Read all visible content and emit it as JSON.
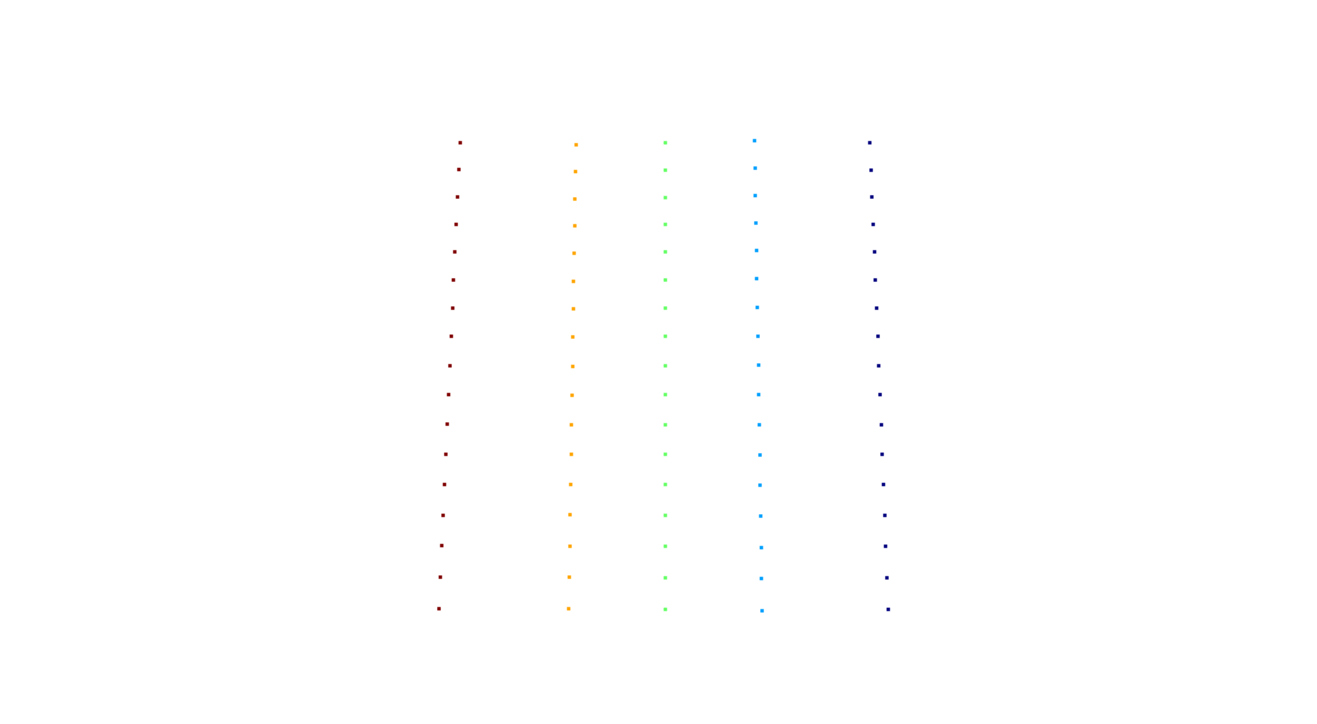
{
  "chart_data": {
    "type": "scatter",
    "axes_visible": false,
    "grid": false,
    "legend": "none",
    "series": [
      {
        "color": "#800000",
        "x": [
          671,
          669,
          667,
          665,
          663,
          661,
          660,
          658,
          656,
          654,
          652,
          650,
          648,
          646,
          644,
          642,
          640
        ],
        "y": [
          208,
          247,
          287,
          327,
          367,
          408,
          449,
          490,
          533,
          575,
          618,
          662,
          706,
          751,
          795,
          841,
          887
        ]
      },
      {
        "color": "#FFA500",
        "x": [
          840,
          839,
          838,
          838,
          837,
          836,
          836,
          835,
          835,
          834,
          833,
          833,
          832,
          831,
          831,
          830,
          829
        ],
        "y": [
          211,
          250,
          290,
          329,
          369,
          410,
          450,
          491,
          534,
          576,
          619,
          662,
          706,
          750,
          796,
          841,
          887
        ]
      },
      {
        "color": "#66FF66",
        "x": [
          970,
          970,
          970,
          970,
          970,
          970,
          970,
          970,
          970,
          970,
          970,
          970,
          970,
          970,
          970,
          970,
          970
        ],
        "y": [
          208,
          248,
          288,
          327,
          367,
          408,
          449,
          490,
          533,
          575,
          619,
          662,
          706,
          751,
          796,
          842,
          888
        ]
      },
      {
        "color": "#00A0FF",
        "x": [
          1100,
          1101,
          1101,
          1102,
          1103,
          1103,
          1104,
          1105,
          1106,
          1106,
          1107,
          1108,
          1108,
          1109,
          1110,
          1110,
          1111
        ],
        "y": [
          205,
          245,
          285,
          325,
          365,
          406,
          448,
          490,
          532,
          575,
          619,
          663,
          707,
          752,
          798,
          843,
          890
        ]
      },
      {
        "color": "#00007F",
        "x": [
          1268,
          1270,
          1271,
          1273,
          1275,
          1276,
          1278,
          1280,
          1281,
          1283,
          1285,
          1286,
          1288,
          1290,
          1291,
          1293,
          1295
        ],
        "y": [
          208,
          248,
          287,
          327,
          367,
          408,
          449,
          490,
          533,
          575,
          619,
          662,
          706,
          751,
          796,
          842,
          888
        ]
      }
    ]
  }
}
